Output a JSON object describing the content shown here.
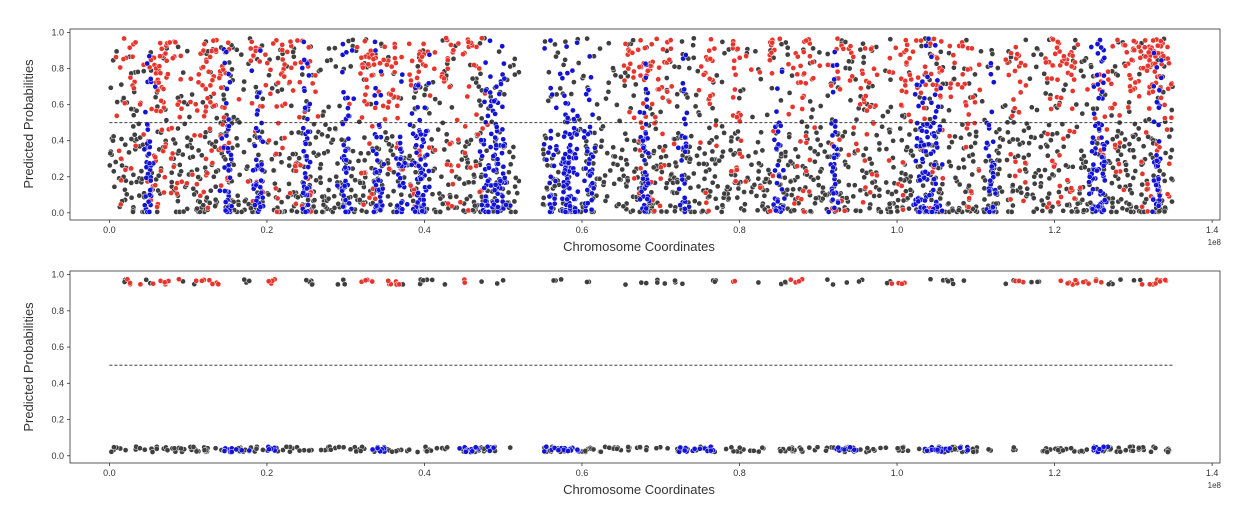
{
  "chart_data": [
    {
      "type": "scatter",
      "id": "top",
      "xlabel": "Chromosome Coordinates",
      "ylabel": "Predicted Probabilities",
      "x_offset_label": "1e8",
      "xlim": [
        -0.05,
        1.41
      ],
      "ylim": [
        -0.04,
        1.02
      ],
      "x_ticks": [
        0.0,
        0.2,
        0.4,
        0.6,
        0.8,
        1.0,
        1.2,
        1.4
      ],
      "x_tick_labels": [
        "0.0",
        "0.2",
        "0.4",
        "0.6",
        "0.8",
        "1.0",
        "1.2",
        "1.4"
      ],
      "y_ticks": [
        0.0,
        0.2,
        0.4,
        0.6,
        0.8,
        1.0
      ],
      "y_tick_labels": [
        "0.0",
        "0.2",
        "0.4",
        "0.6",
        "0.8",
        "1.0"
      ],
      "threshold": 0.5,
      "threshold_x": [
        0.0,
        1.35
      ],
      "grid": false,
      "colors": {
        "gray": "#3f3f3f",
        "red": "#e8352c",
        "blue": "#1313d6",
        "edge": "#ffffff"
      },
      "point_count_per_class": {
        "gray": 1900,
        "red": 950,
        "blue": 1000
      },
      "x_range_data": [
        0.0,
        1.35
      ],
      "gap": [
        0.52,
        0.55
      ],
      "red_clusters": [
        0.02,
        0.06,
        0.08,
        0.12,
        0.14,
        0.19,
        0.22,
        0.25,
        0.33,
        0.36,
        0.39,
        0.43,
        0.46,
        0.67,
        0.7,
        0.76,
        0.8,
        0.84,
        0.88,
        0.93,
        0.96,
        1.01,
        1.05,
        1.09,
        1.15,
        1.2,
        1.22,
        1.26,
        1.29,
        1.32,
        1.34
      ],
      "blue_clusters": [
        0.05,
        0.15,
        0.19,
        0.25,
        0.3,
        0.34,
        0.37,
        0.39,
        0.4,
        0.48,
        0.49,
        0.5,
        0.56,
        0.58,
        0.59,
        0.61,
        0.68,
        0.73,
        0.85,
        0.92,
        1.03,
        1.04,
        1.05,
        1.12,
        1.25,
        1.26,
        1.33
      ]
    },
    {
      "type": "scatter",
      "id": "bottom",
      "xlabel": "Chromosome Coordinates",
      "ylabel": "Predicted Probabilities",
      "x_offset_label": "1e8",
      "xlim": [
        -0.05,
        1.41
      ],
      "ylim": [
        -0.04,
        1.02
      ],
      "x_ticks": [
        0.0,
        0.2,
        0.4,
        0.6,
        0.8,
        1.0,
        1.2,
        1.4
      ],
      "x_tick_labels": [
        "0.0",
        "0.2",
        "0.4",
        "0.6",
        "0.8",
        "1.0",
        "1.2",
        "1.4"
      ],
      "y_ticks": [
        0.0,
        0.2,
        0.4,
        0.6,
        0.8,
        1.0
      ],
      "y_tick_labels": [
        "0.0",
        "0.2",
        "0.4",
        "0.6",
        "0.8",
        "1.0"
      ],
      "threshold": 0.5,
      "threshold_x": [
        0.0,
        1.35
      ],
      "grid": false,
      "colors": {
        "gray": "#3f3f3f",
        "red": "#e8352c",
        "blue": "#1313d6",
        "edge": "#ffffff"
      },
      "high_band": [
        0.945,
        0.975
      ],
      "low_band": [
        0.02,
        0.05
      ],
      "high_red_segments": [
        [
          0.02,
          0.04
        ],
        [
          0.055,
          0.09
        ],
        [
          0.11,
          0.14
        ],
        [
          0.19,
          0.21
        ],
        [
          0.32,
          0.37
        ],
        [
          0.45,
          0.46
        ],
        [
          0.79,
          0.8
        ],
        [
          0.86,
          0.88
        ],
        [
          0.99,
          1.01
        ],
        [
          1.15,
          1.17
        ],
        [
          1.2,
          1.26
        ],
        [
          1.31,
          1.35
        ]
      ],
      "high_gray_segments": [
        [
          0.005,
          0.02
        ],
        [
          0.04,
          0.06
        ],
        [
          0.09,
          0.11
        ],
        [
          0.16,
          0.19
        ],
        [
          0.23,
          0.3
        ],
        [
          0.37,
          0.45
        ],
        [
          0.47,
          0.5
        ],
        [
          0.55,
          0.58
        ],
        [
          0.6,
          0.62
        ],
        [
          0.65,
          0.73
        ],
        [
          0.76,
          0.79
        ],
        [
          0.82,
          0.86
        ],
        [
          0.91,
          0.96
        ],
        [
          0.98,
          1.0
        ],
        [
          1.04,
          1.1
        ],
        [
          1.13,
          1.15
        ],
        [
          1.17,
          1.2
        ],
        [
          1.26,
          1.31
        ]
      ],
      "low_gray_segments": [
        [
          0.0,
          0.51
        ],
        [
          0.55,
          1.12
        ],
        [
          1.14,
          1.35
        ]
      ],
      "low_blue_segments": [
        [
          0.14,
          0.18
        ],
        [
          0.2,
          0.22
        ],
        [
          0.32,
          0.35
        ],
        [
          0.44,
          0.49
        ],
        [
          0.55,
          0.6
        ],
        [
          0.72,
          0.77
        ],
        [
          0.92,
          0.95
        ],
        [
          1.03,
          1.09
        ],
        [
          1.24,
          1.27
        ]
      ]
    }
  ]
}
